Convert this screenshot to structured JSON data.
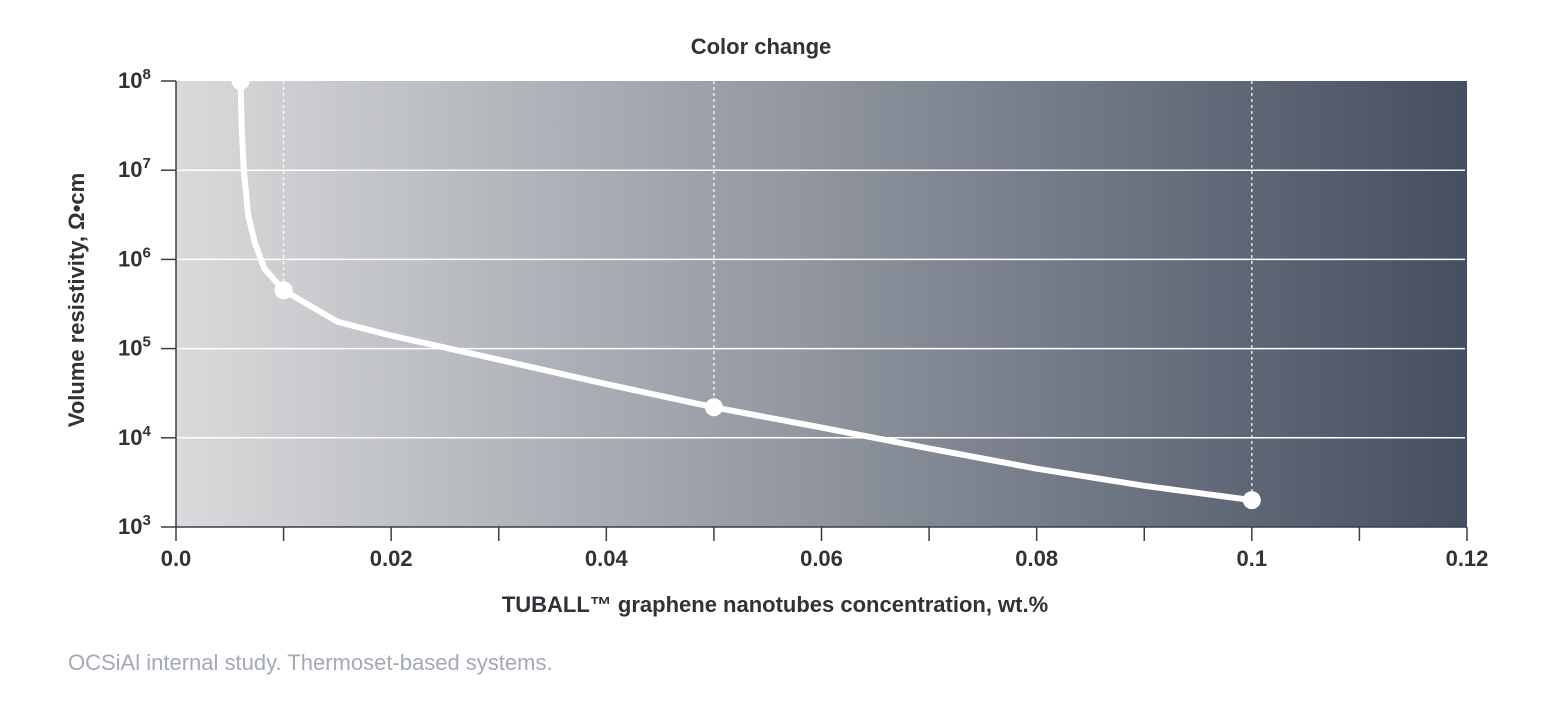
{
  "chart_data": {
    "type": "line",
    "title": "Color change",
    "xlabel": "TUBALL™ graphene nanotubes concentration, wt.%",
    "ylabel": "Volume resistivity, Ω•cm",
    "xlim": [
      0,
      0.12
    ],
    "ylim_exponent": [
      3,
      8
    ],
    "yscale": "log",
    "x_ticks": [
      {
        "value": 0,
        "label": "0.0"
      },
      {
        "value": 0.02,
        "label": "0.02"
      },
      {
        "value": 0.04,
        "label": "0.04"
      },
      {
        "value": 0.06,
        "label": "0.06"
      },
      {
        "value": 0.08,
        "label": "0.08"
      },
      {
        "value": 0.1,
        "label": "0.1"
      },
      {
        "value": 0.12,
        "label": "0.12"
      }
    ],
    "x_minor_ticks": [
      0.01,
      0.03,
      0.05,
      0.07,
      0.09,
      0.11
    ],
    "y_ticks": [
      {
        "exponent": 3,
        "base": "10",
        "sup": "3"
      },
      {
        "exponent": 4,
        "base": "10",
        "sup": "4"
      },
      {
        "exponent": 5,
        "base": "10",
        "sup": "5"
      },
      {
        "exponent": 6,
        "base": "10",
        "sup": "6"
      },
      {
        "exponent": 7,
        "base": "10",
        "sup": "7"
      },
      {
        "exponent": 8,
        "base": "10",
        "sup": "8"
      }
    ],
    "grid": "horizontal",
    "background_gradient": [
      "#d9dadb",
      "#454f61"
    ],
    "series": [
      {
        "color": "#ffffff",
        "points": [
          {
            "x": 0.006,
            "y": 100000000
          },
          {
            "x": 0.0061,
            "y": 31600000
          },
          {
            "x": 0.0063,
            "y": 10000000
          },
          {
            "x": 0.0067,
            "y": 3160000
          },
          {
            "x": 0.0073,
            "y": 1580000
          },
          {
            "x": 0.0082,
            "y": 794000
          },
          {
            "x": 0.01,
            "y": 450000
          },
          {
            "x": 0.015,
            "y": 200000
          },
          {
            "x": 0.02,
            "y": 140000
          },
          {
            "x": 0.03,
            "y": 75000
          },
          {
            "x": 0.04,
            "y": 40000
          },
          {
            "x": 0.05,
            "y": 22000
          },
          {
            "x": 0.06,
            "y": 13000
          },
          {
            "x": 0.07,
            "y": 7600
          },
          {
            "x": 0.08,
            "y": 4500
          },
          {
            "x": 0.09,
            "y": 2900
          },
          {
            "x": 0.1,
            "y": 2000
          }
        ],
        "markers": [
          {
            "x": 0.006,
            "y": 100000000
          },
          {
            "x": 0.01,
            "y": 450000
          },
          {
            "x": 0.05,
            "y": 22000
          },
          {
            "x": 0.1,
            "y": 2000
          }
        ]
      }
    ],
    "reference_lines_x": [
      0.01,
      0.05,
      0.1
    ]
  },
  "footnote": "OCSiAl internal study. Thermoset-based systems."
}
